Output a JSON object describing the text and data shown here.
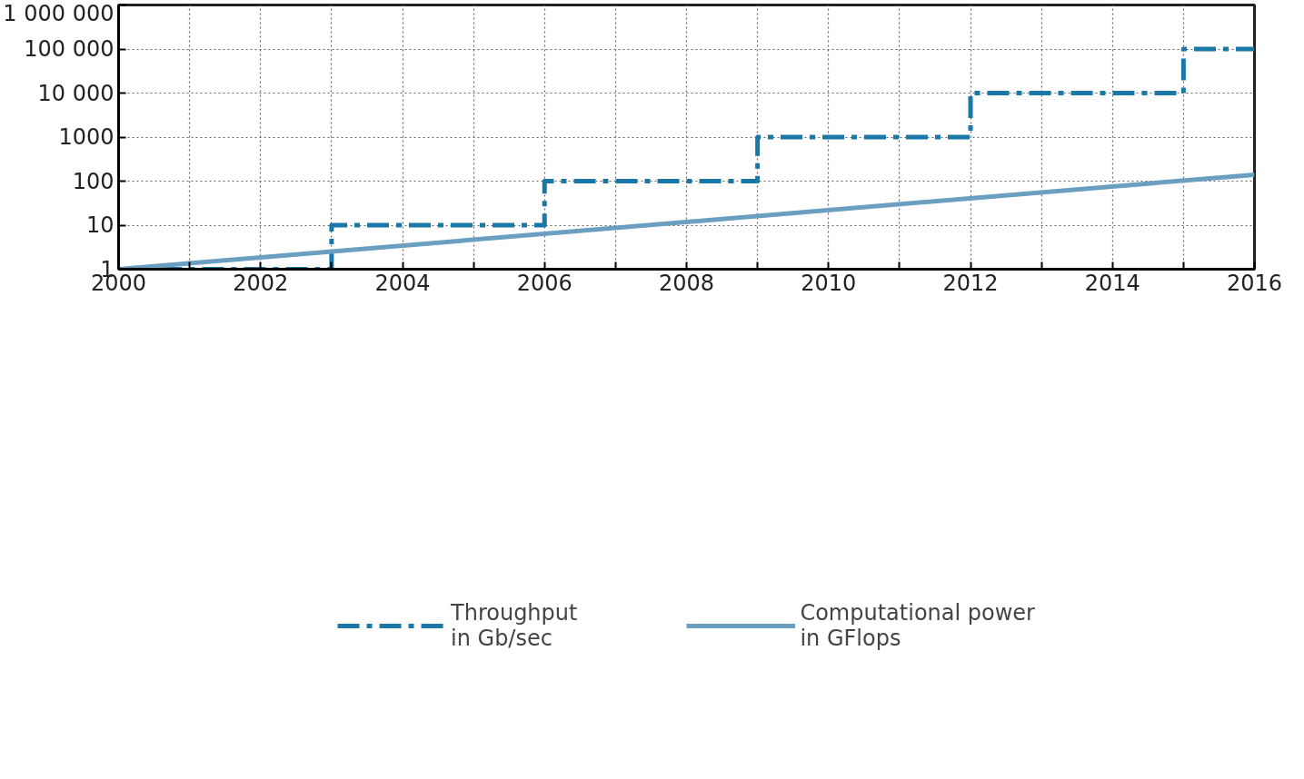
{
  "chart_data": {
    "type": "line",
    "log": "y",
    "grid": true,
    "legend": "bottom",
    "marker": "none",
    "xlim": [
      2000,
      2016
    ],
    "ylim": [
      1,
      1000000
    ],
    "xticks": [
      2000,
      {
        "value": 2001,
        "label": null
      },
      2002,
      {
        "value": 2003,
        "label": null
      },
      2004,
      {
        "value": 2005,
        "label": null
      },
      2006,
      {
        "value": 2007,
        "label": null
      },
      2008,
      {
        "value": 2009,
        "label": null
      },
      2010,
      {
        "value": 2011,
        "label": null
      },
      2012,
      {
        "value": 2013,
        "label": null
      },
      2014,
      {
        "value": 2015,
        "label": null
      },
      2016
    ],
    "yticks": [
      1,
      10,
      100,
      1000,
      {
        "value": 10000,
        "label": "10 000"
      },
      {
        "value": 100000,
        "label": "100 000"
      },
      {
        "value": 1000000,
        "label": "1 000 000"
      }
    ],
    "series": [
      {
        "name": "Throughput\nin Gb/sec",
        "type": "step",
        "line_style": "dashdot",
        "color": "#1a78a8",
        "x": [
          2000,
          2003,
          2006,
          2009,
          2012,
          2015,
          2016
        ],
        "values": [
          1,
          10,
          100,
          1000,
          10000,
          100000,
          100000
        ]
      },
      {
        "name": "Computational power\nin GFlops",
        "line_style": "solid",
        "color": "#6a9fc2",
        "x": [
          2000,
          2016
        ],
        "values": [
          1,
          140
        ]
      }
    ]
  }
}
